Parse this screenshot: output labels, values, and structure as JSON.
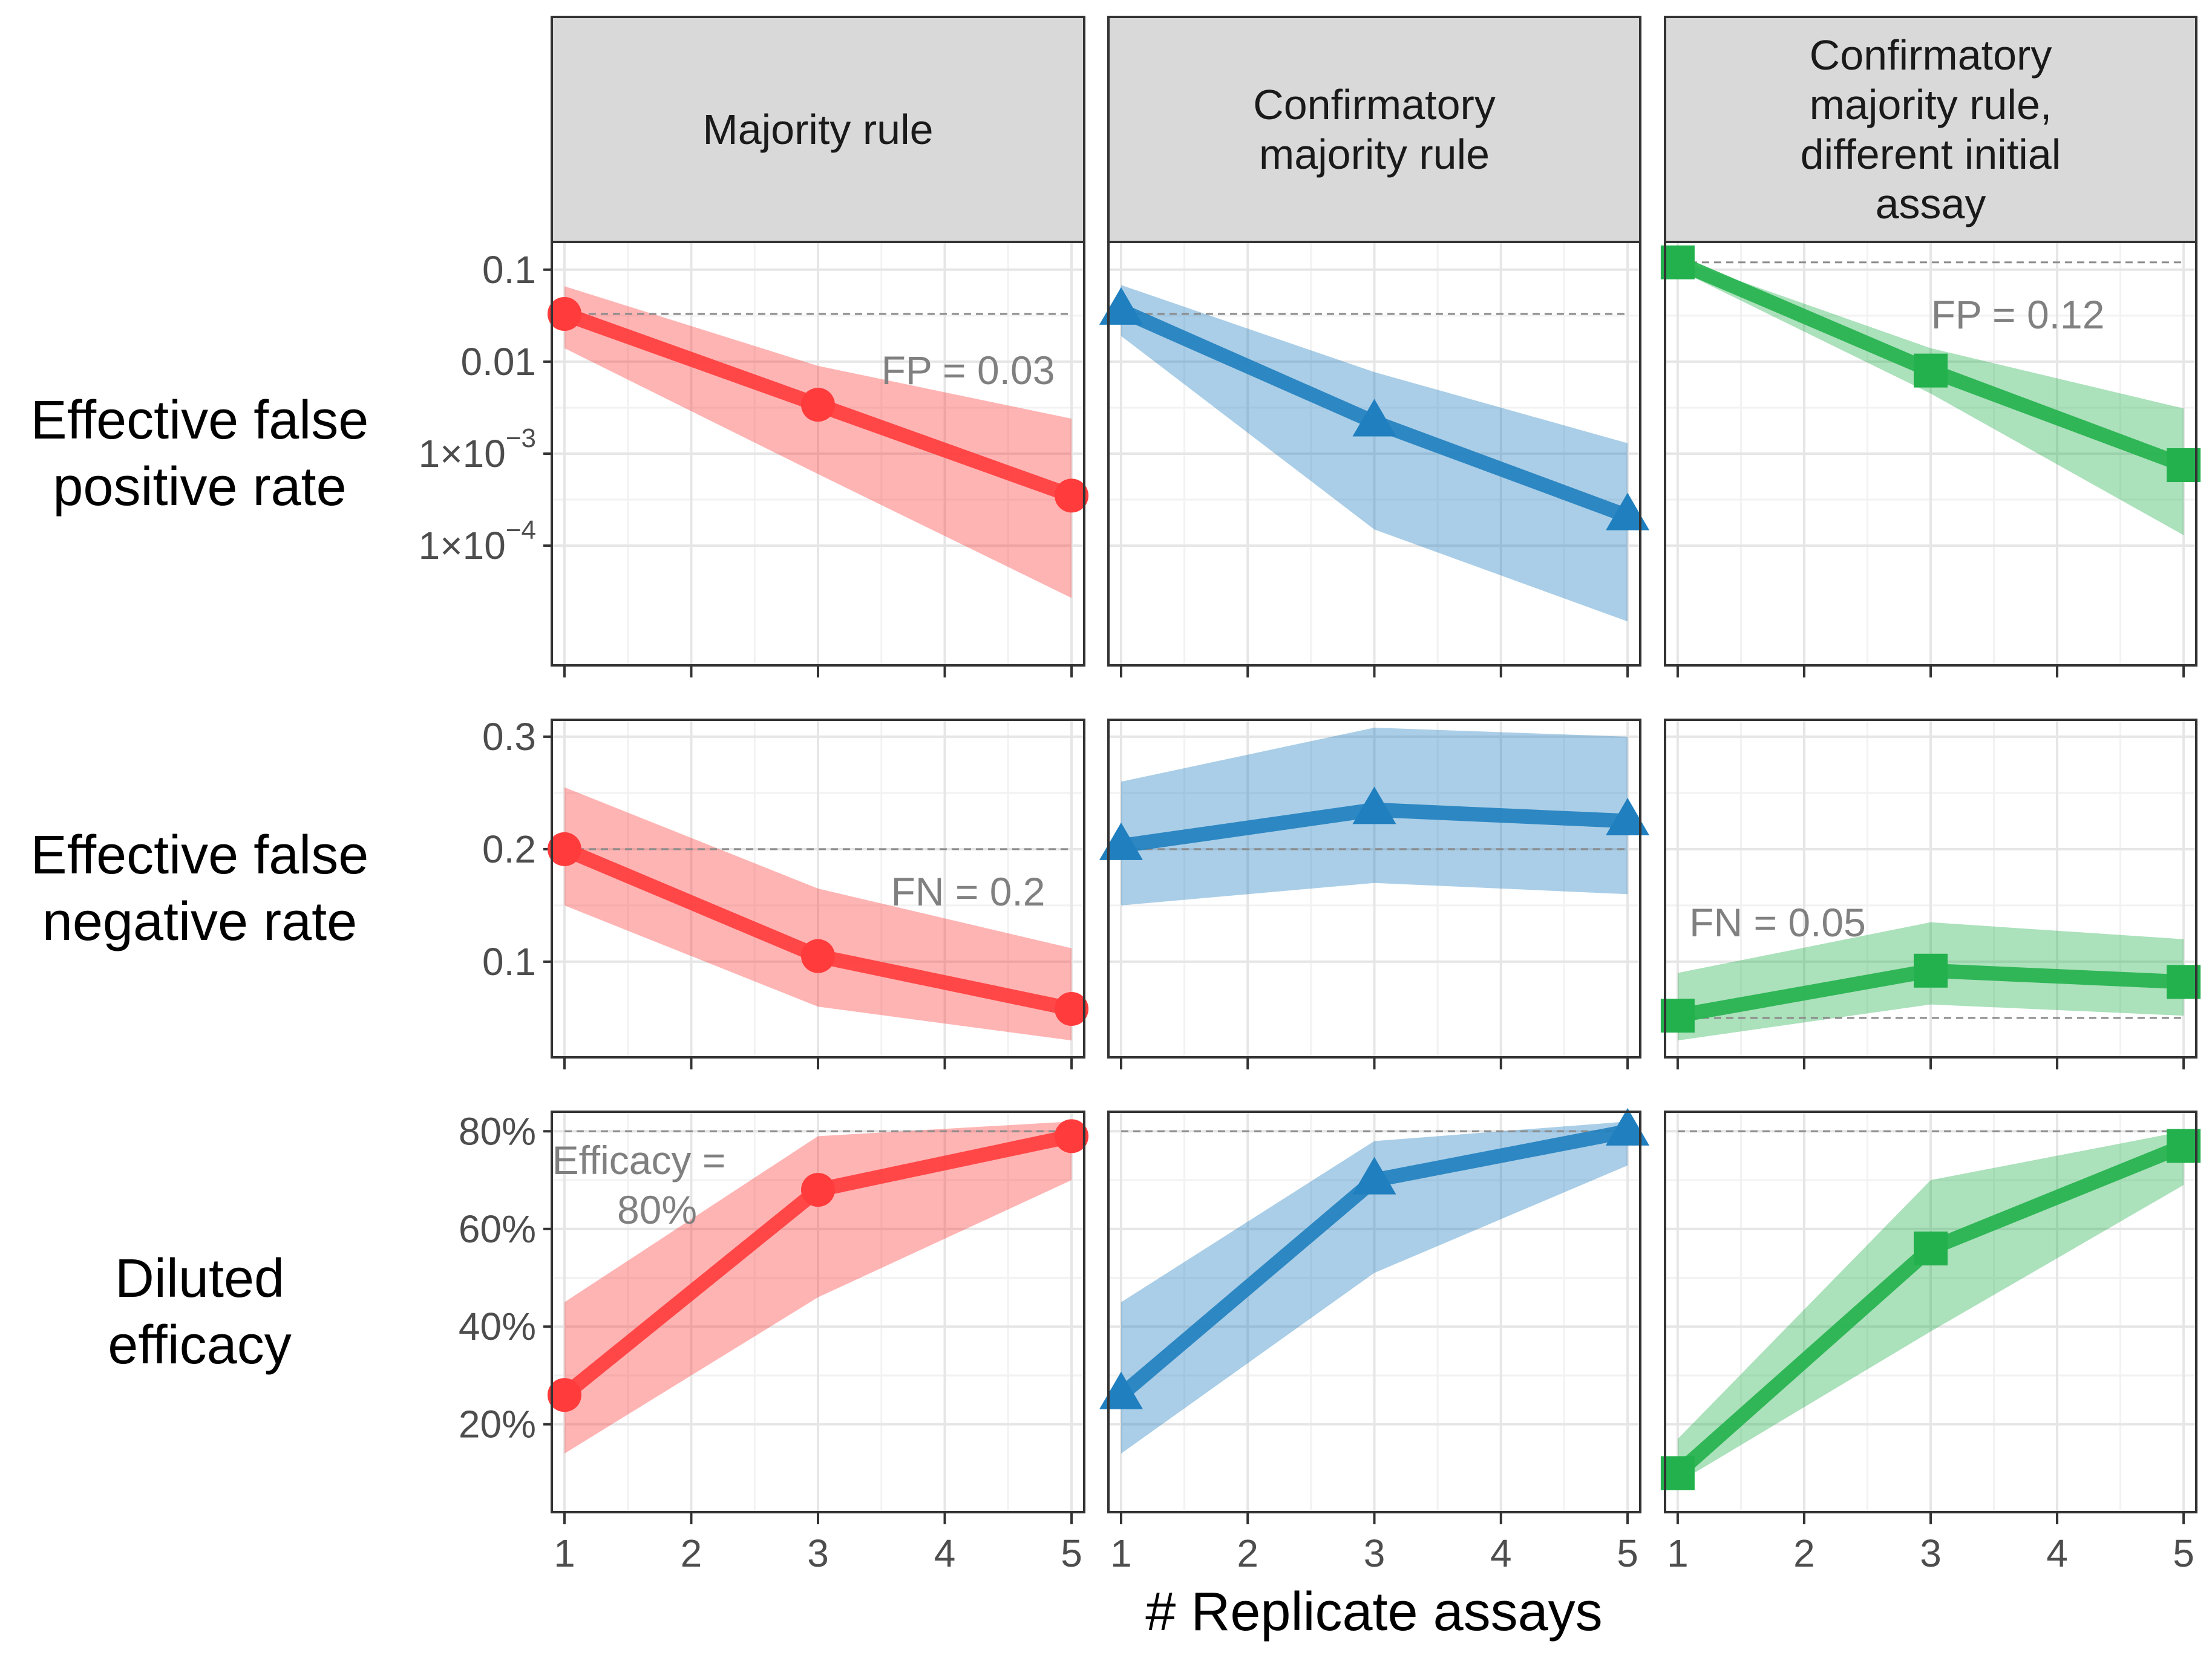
{
  "chart_data": {
    "type": "line",
    "xlabel": "# Replicate assays",
    "x_ticks": [
      "1",
      "2",
      "3",
      "4",
      "5"
    ],
    "xlim": [
      0.9,
      5.1
    ],
    "columns": [
      {
        "key": "majority",
        "label_lines": [
          "Majority rule"
        ],
        "color": "#ff3b3b",
        "marker": "circle"
      },
      {
        "key": "confirmatory",
        "label_lines": [
          "Confirmatory",
          "majority rule"
        ],
        "color": "#1f7fbf",
        "marker": "triangle"
      },
      {
        "key": "confirmatory_diff",
        "label_lines": [
          "Confirmatory",
          "majority rule,",
          "different initial",
          "assay"
        ],
        "color": "#22b14c",
        "marker": "square"
      }
    ],
    "rows": [
      {
        "key": "fp",
        "label_lines": [
          "Effective false",
          "positive rate"
        ],
        "scale": "log10",
        "ylim": [
          5e-06,
          0.2
        ],
        "y_ticks": [
          {
            "value": 0.1,
            "label": "0.1"
          },
          {
            "value": 0.01,
            "label": "0.01"
          },
          {
            "value": 0.001,
            "label": "1×10",
            "exp": "−3"
          },
          {
            "value": 0.0001,
            "label": "1×10",
            "exp": "−4"
          }
        ],
        "panels": [
          {
            "x": [
              1,
              3,
              5
            ],
            "y": [
              0.033,
              0.0034,
              0.00035
            ],
            "lower": [
              0.014,
              0.0006,
              2.7e-05
            ],
            "upper": [
              0.066,
              0.009,
              0.0024
            ],
            "ref": 0.033,
            "annotation": [
              "FP = 0.03"
            ]
          },
          {
            "x": [
              1,
              3,
              5
            ],
            "y": [
              0.036,
              0.0022,
              0.00021
            ],
            "lower": [
              0.019,
              0.00015,
              1.5e-05
            ],
            "upper": [
              0.068,
              0.0077,
              0.0013
            ],
            "ref": 0.033,
            "annotation": []
          },
          {
            "x": [
              1,
              3,
              5
            ],
            "y": [
              0.12,
              0.008,
              0.00075
            ],
            "lower": [
              0.1,
              0.0045,
              0.00013
            ],
            "upper": [
              0.13,
              0.014,
              0.0031
            ],
            "ref": 0.12,
            "annotation": [
              "FP = 0.12"
            ]
          }
        ]
      },
      {
        "key": "fn",
        "label_lines": [
          "Effective false",
          "negative rate"
        ],
        "scale": "linear",
        "ylim": [
          0.015,
          0.315
        ],
        "y_ticks": [
          {
            "value": 0.3,
            "label": "0.3"
          },
          {
            "value": 0.2,
            "label": "0.2"
          },
          {
            "value": 0.1,
            "label": "0.1"
          }
        ],
        "panels": [
          {
            "x": [
              1,
              3,
              5
            ],
            "y": [
              0.2,
              0.105,
              0.058
            ],
            "lower": [
              0.15,
              0.06,
              0.03
            ],
            "upper": [
              0.255,
              0.165,
              0.112
            ],
            "ref": 0.2,
            "annotation": [
              "FN = 0.2"
            ]
          },
          {
            "x": [
              1,
              3,
              5
            ],
            "y": [
              0.203,
              0.235,
              0.225
            ],
            "lower": [
              0.15,
              0.17,
              0.16
            ],
            "upper": [
              0.26,
              0.308,
              0.3
            ],
            "ref": 0.2,
            "annotation": []
          },
          {
            "x": [
              1,
              3,
              5
            ],
            "y": [
              0.052,
              0.092,
              0.082
            ],
            "lower": [
              0.03,
              0.062,
              0.052
            ],
            "upper": [
              0.09,
              0.135,
              0.12
            ],
            "ref": 0.05,
            "annotation": [
              "FN = 0.05"
            ]
          }
        ]
      },
      {
        "key": "efficacy",
        "label_lines": [
          "Diluted",
          "efficacy"
        ],
        "scale": "linear",
        "ylim": [
          2,
          84
        ],
        "y_ticks": [
          {
            "value": 80,
            "label": "80%"
          },
          {
            "value": 60,
            "label": "60%"
          },
          {
            "value": 40,
            "label": "40%"
          },
          {
            "value": 20,
            "label": "20%"
          }
        ],
        "panels": [
          {
            "x": [
              1,
              3,
              5
            ],
            "y": [
              26,
              68,
              79
            ],
            "lower": [
              14,
              46,
              70
            ],
            "upper": [
              45,
              79,
              82
            ],
            "ref": 80,
            "annotation": [
              "Efficacy =",
              "80%"
            ]
          },
          {
            "x": [
              1,
              3,
              5
            ],
            "y": [
              26,
              70,
              80
            ],
            "lower": [
              14,
              51,
              73
            ],
            "upper": [
              45,
              78,
              82
            ],
            "ref": 80,
            "annotation": []
          },
          {
            "x": [
              1,
              3,
              5
            ],
            "y": [
              10,
              56,
              77
            ],
            "lower": [
              8,
              39,
              69
            ],
            "upper": [
              17,
              70,
              80
            ],
            "ref": 80,
            "annotation": []
          }
        ]
      }
    ]
  }
}
